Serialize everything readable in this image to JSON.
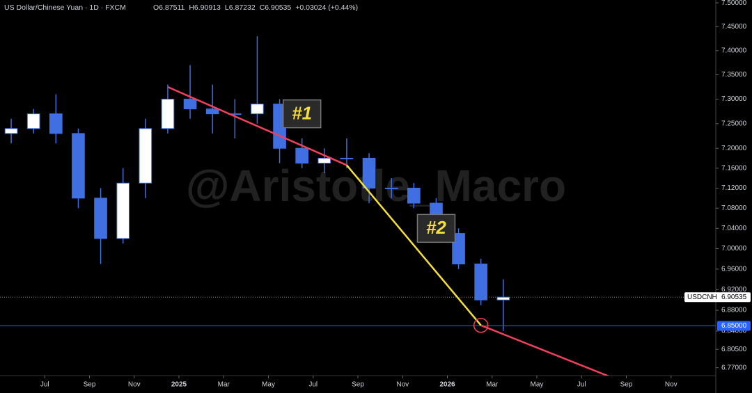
{
  "chart_data": {
    "type": "candlestick",
    "title": "US Dollar/Chinese Yuan · 1D · FXCM",
    "ohlc_header": [
      "O6.87511",
      "H6.90913",
      "L6.87232",
      "C6.90535",
      "+0.03024 (+0.44%)"
    ],
    "watermark": "@Aristotle_Macro",
    "color": "#3f6fe0",
    "log_scale": true,
    "x": [
      "2024-05",
      "2024-06",
      "2024-07",
      "2024-08",
      "2024-09",
      "2024-10",
      "2024-11",
      "2024-12",
      "2025-01",
      "2025-02",
      "2025-03",
      "2025-04",
      "2025-05",
      "2025-06",
      "2025-07",
      "2025-08",
      "2025-09",
      "2025-10",
      "2025-11",
      "2025-12",
      "2026-01",
      "2026-02",
      "2026-03"
    ],
    "open": [
      7.23,
      7.24,
      7.27,
      7.23,
      7.1,
      7.02,
      7.13,
      7.24,
      7.3,
      7.28,
      7.27,
      7.27,
      7.29,
      7.2,
      7.17,
      7.18,
      7.18,
      7.12,
      7.12,
      7.09,
      7.03,
      6.97,
      6.9
    ],
    "high": [
      7.26,
      7.28,
      7.31,
      7.24,
      7.12,
      7.16,
      7.26,
      7.33,
      7.37,
      7.33,
      7.3,
      7.43,
      7.3,
      7.22,
      7.2,
      7.22,
      7.19,
      7.14,
      7.13,
      7.1,
      7.04,
      6.98,
      6.94
    ],
    "low": [
      7.21,
      7.23,
      7.21,
      7.08,
      6.97,
      7.01,
      7.1,
      7.23,
      7.26,
      7.23,
      7.22,
      7.25,
      7.17,
      7.16,
      7.15,
      7.16,
      7.09,
      7.1,
      7.08,
      7.02,
      6.96,
      6.89,
      6.84
    ],
    "close": [
      7.24,
      7.27,
      7.23,
      7.1,
      7.02,
      7.13,
      7.24,
      7.3,
      7.28,
      7.27,
      7.27,
      7.29,
      7.2,
      7.17,
      7.18,
      7.18,
      7.12,
      7.12,
      7.09,
      7.03,
      6.97,
      6.9,
      6.90535
    ],
    "xlim": [
      "2024-05",
      "2027-01"
    ],
    "xticks": [
      {
        "value": "2024-07",
        "label": "Jul"
      },
      {
        "value": "2024-09",
        "label": "Sep"
      },
      {
        "value": "2024-11",
        "label": "Nov"
      },
      {
        "value": "2025-01",
        "label": "2025"
      },
      {
        "value": "2025-03",
        "label": "Mar"
      },
      {
        "value": "2025-05",
        "label": "May"
      },
      {
        "value": "2025-07",
        "label": "Jul"
      },
      {
        "value": "2025-09",
        "label": "Sep"
      },
      {
        "value": "2025-11",
        "label": "Nov"
      },
      {
        "value": "2026-01",
        "label": "2026"
      },
      {
        "value": "2026-03",
        "label": "Mar"
      },
      {
        "value": "2026-05",
        "label": "May"
      },
      {
        "value": "2026-07",
        "label": "Jul"
      },
      {
        "value": "2026-09",
        "label": "Sep"
      },
      {
        "value": "2026-11",
        "label": "Nov"
      }
    ],
    "ylim": [
      6.755,
      7.506
    ],
    "yticks": [
      {
        "value": 7.5,
        "label": "7.50000"
      },
      {
        "value": 7.45,
        "label": "7.45000"
      },
      {
        "value": 7.4,
        "label": "7.40000"
      },
      {
        "value": 7.35,
        "label": "7.35000"
      },
      {
        "value": 7.3,
        "label": "7.30000"
      },
      {
        "value": 7.25,
        "label": "7.25000"
      },
      {
        "value": 7.2,
        "label": "7.20000"
      },
      {
        "value": 7.16,
        "label": "7.16000"
      },
      {
        "value": 7.12,
        "label": "7.12000"
      },
      {
        "value": 7.08,
        "label": "7.08000"
      },
      {
        "value": 7.04,
        "label": "7.04000"
      },
      {
        "value": 7.0,
        "label": "7.00000"
      },
      {
        "value": 6.96,
        "label": "6.96000"
      },
      {
        "value": 6.92,
        "label": "6.92000"
      },
      {
        "value": 6.88,
        "label": "6.88000"
      },
      {
        "value": 6.84,
        "label": "6.84000"
      },
      {
        "value": 6.805,
        "label": "6.80500"
      },
      {
        "value": 6.77,
        "label": "6.77000"
      }
    ],
    "last_price": {
      "name": "USDCNH",
      "value": 6.90535,
      "label": "6.90535"
    },
    "level": {
      "value": 6.85,
      "label": "6.85000",
      "color": "#2962ff"
    },
    "trendlines": [
      {
        "color": "#f0405a",
        "x": [
          "2024-12",
          "2025-08"
        ],
        "y": [
          7.325,
          7.166
        ]
      },
      {
        "color": "#f5e03a",
        "x": [
          "2025-08",
          "2026-02"
        ],
        "y": [
          7.166,
          6.851
        ]
      },
      {
        "color": "#f0405a",
        "x": [
          "2026-02",
          "2026-08"
        ],
        "y": [
          6.851,
          6.749
        ]
      }
    ],
    "annotations": [
      {
        "text": "#1",
        "x": "2025-06",
        "y": 7.27
      },
      {
        "text": "#2",
        "x": "2025-12",
        "y": 7.04
      }
    ]
  }
}
